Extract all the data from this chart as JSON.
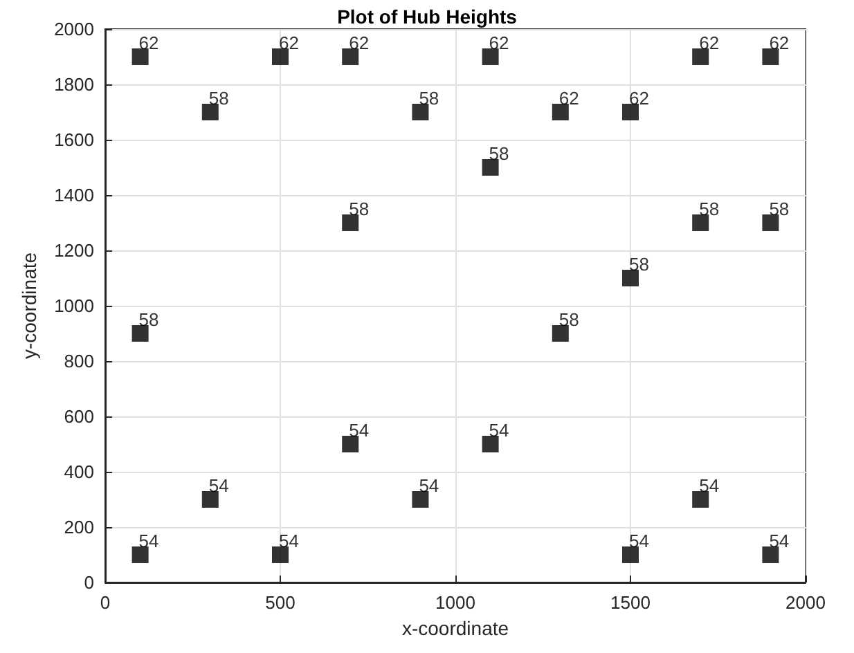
{
  "chart_data": {
    "type": "scatter",
    "title": "Plot of Hub Heights",
    "xlabel": "x-coordinate",
    "ylabel": "y-coordinate",
    "x": [
      100,
      500,
      700,
      1100,
      1700,
      1900,
      300,
      900,
      1300,
      1500,
      1100,
      700,
      1700,
      1900,
      1500,
      100,
      1300,
      700,
      1100,
      300,
      900,
      1700,
      100,
      500,
      1500,
      1900
    ],
    "series": [
      {
        "color": "#000000",
        "values": [
          1900,
          1900,
          1900,
          1900,
          1900,
          1900,
          1700,
          1700,
          1700,
          1700,
          1500,
          1300,
          1300,
          1300,
          1100,
          900,
          900,
          500,
          500,
          300,
          300,
          300,
          100,
          100,
          100,
          100
        ]
      }
    ],
    "annotations": [
      {
        "text": "62",
        "x": 100,
        "y": 1900
      },
      {
        "text": "62",
        "x": 500,
        "y": 1900
      },
      {
        "text": "62",
        "x": 700,
        "y": 1900
      },
      {
        "text": "62",
        "x": 1100,
        "y": 1900
      },
      {
        "text": "62",
        "x": 1700,
        "y": 1900
      },
      {
        "text": "62",
        "x": 1900,
        "y": 1900
      },
      {
        "text": "58",
        "x": 300,
        "y": 1700
      },
      {
        "text": "58",
        "x": 900,
        "y": 1700
      },
      {
        "text": "62",
        "x": 1300,
        "y": 1700
      },
      {
        "text": "62",
        "x": 1500,
        "y": 1700
      },
      {
        "text": "58",
        "x": 1100,
        "y": 1500
      },
      {
        "text": "58",
        "x": 700,
        "y": 1300
      },
      {
        "text": "58",
        "x": 1700,
        "y": 1300
      },
      {
        "text": "58",
        "x": 1900,
        "y": 1300
      },
      {
        "text": "58",
        "x": 1500,
        "y": 1100
      },
      {
        "text": "58",
        "x": 100,
        "y": 900
      },
      {
        "text": "58",
        "x": 1300,
        "y": 900
      },
      {
        "text": "54",
        "x": 700,
        "y": 500
      },
      {
        "text": "54",
        "x": 1100,
        "y": 500
      },
      {
        "text": "54",
        "x": 300,
        "y": 300
      },
      {
        "text": "54",
        "x": 900,
        "y": 300
      },
      {
        "text": "54",
        "x": 1700,
        "y": 300
      },
      {
        "text": "54",
        "x": 100,
        "y": 100
      },
      {
        "text": "54",
        "x": 500,
        "y": 100
      },
      {
        "text": "54",
        "x": 1500,
        "y": 100
      },
      {
        "text": "54",
        "x": 1900,
        "y": 100
      }
    ],
    "xlim": [
      0,
      2000
    ],
    "xticks": [
      0,
      500,
      1000,
      1500,
      2000
    ],
    "ylim": [
      0,
      2000
    ],
    "yticks": [
      0,
      200,
      400,
      600,
      800,
      1000,
      1200,
      1400,
      1600,
      1800,
      2000
    ],
    "grid": true,
    "marker": "square"
  }
}
